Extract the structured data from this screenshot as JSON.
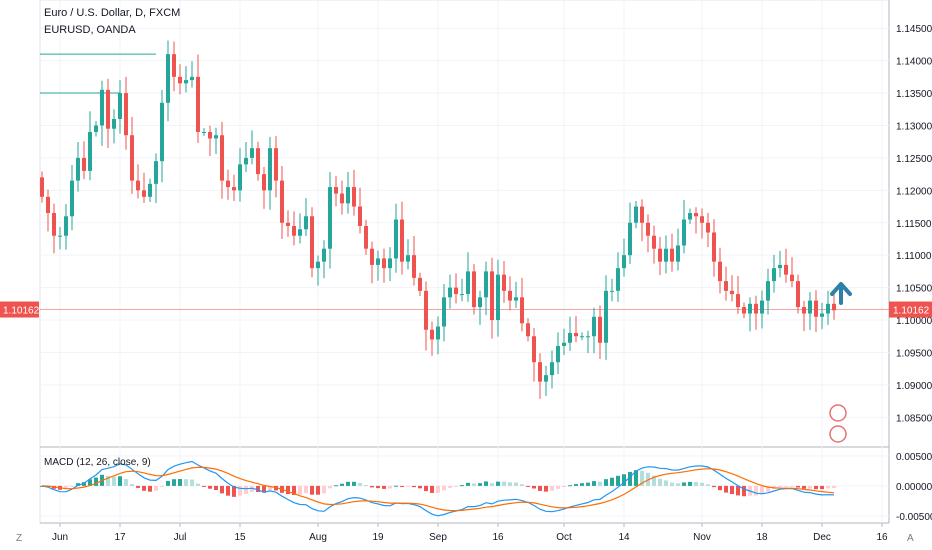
{
  "header": {
    "title": "Euro / U.S. Dollar, D, FXCM",
    "subtitle": "EURUSD, OANDA"
  },
  "macd": {
    "label": "MACD (12, 26, close, 9)"
  },
  "price_badge": "1.10162",
  "left_button": "Z",
  "right_button": "A",
  "colors": {
    "up": "#26a69a",
    "down": "#ef5350",
    "macd_line": "#2196f3",
    "signal_line": "#ff6d00",
    "price_line": "#ef5350",
    "arrow": "#2f7fa8"
  },
  "chart_data": [
    {
      "type": "candlestick",
      "y_ticks": [
        "1.14500",
        "1.14000",
        "1.13500",
        "1.13000",
        "1.12500",
        "1.12000",
        "1.11500",
        "1.11000",
        "1.10500",
        "1.10000",
        "1.09500",
        "1.09000",
        "1.08500"
      ],
      "y_range": [
        1.0815,
        1.1475
      ],
      "x_ticks": [
        {
          "label": "Jun",
          "bar": 3
        },
        {
          "label": "17",
          "bar": 13
        },
        {
          "label": "Jul",
          "bar": 23
        },
        {
          "label": "15",
          "bar": 33
        },
        {
          "label": "Aug",
          "bar": 46
        },
        {
          "label": "19",
          "bar": 56
        },
        {
          "label": "Sep",
          "bar": 66
        },
        {
          "label": "16",
          "bar": 76
        },
        {
          "label": "Oct",
          "bar": 87
        },
        {
          "label": "14",
          "bar": 97
        },
        {
          "label": "Nov",
          "bar": 110
        },
        {
          "label": "18",
          "bar": 120
        },
        {
          "label": "Dec",
          "bar": 130
        },
        {
          "label": "16",
          "bar": 140
        }
      ],
      "last_price": 1.10162,
      "closes": [
        1.119,
        1.1165,
        1.113,
        1.113,
        1.116,
        1.1215,
        1.125,
        1.123,
        1.129,
        1.13,
        1.1355,
        1.1295,
        1.131,
        1.135,
        1.1285,
        1.1215,
        1.12,
        1.119,
        1.121,
        1.1245,
        1.1335,
        1.141,
        1.1375,
        1.1365,
        1.137,
        1.1375,
        1.129,
        1.129,
        1.128,
        1.1285,
        1.1215,
        1.1205,
        1.12,
        1.124,
        1.125,
        1.1265,
        1.1225,
        1.12,
        1.1265,
        1.1215,
        1.115,
        1.1145,
        1.113,
        1.114,
        1.116,
        1.108,
        1.109,
        1.111,
        1.1205,
        1.1195,
        1.118,
        1.1205,
        1.1175,
        1.1145,
        1.111,
        1.1085,
        1.1095,
        1.108,
        1.1095,
        1.1155,
        1.109,
        1.11,
        1.1065,
        1.1045,
        1.0985,
        1.097,
        1.099,
        1.1035,
        1.105,
        1.104,
        1.104,
        1.1075,
        1.102,
        1.1035,
        1.1075,
        1.1,
        1.107,
        1.1045,
        1.103,
        1.1035,
        1.0995,
        1.0975,
        1.0935,
        1.0905,
        1.0915,
        1.0935,
        1.096,
        1.0965,
        1.098,
        1.0975,
        1.0975,
        1.0975,
        1.1005,
        1.0965,
        1.1045,
        1.1045,
        1.108,
        1.11,
        1.115,
        1.1175,
        1.115,
        1.113,
        1.111,
        1.109,
        1.111,
        1.109,
        1.1115,
        1.1155,
        1.1165,
        1.116,
        1.115,
        1.1135,
        1.109,
        1.106,
        1.1045,
        1.104,
        1.102,
        1.101,
        1.1025,
        1.101,
        1.103,
        1.106,
        1.108,
        1.1085,
        1.107,
        1.106,
        1.102,
        1.101,
        1.103,
        1.1005,
        1.101,
        1.1025,
        1.1015
      ],
      "arrow_label": "up"
    },
    {
      "type": "macd",
      "params": "12, 26, close, 9",
      "y_ticks": [
        "0.00500",
        "0.00000",
        "-0.00500"
      ],
      "y_range": [
        -0.0055,
        0.0058
      ]
    }
  ]
}
